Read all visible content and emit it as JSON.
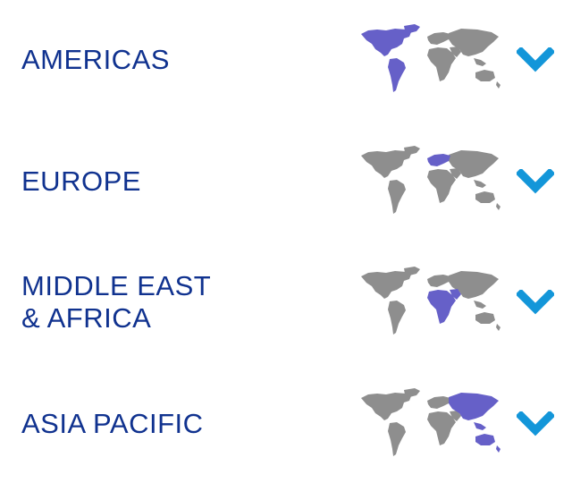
{
  "colors": {
    "title": "#10328f",
    "chevron": "#1396d9",
    "map_land": "#8e8e8e",
    "map_highlight": "#6660c8"
  },
  "regions": [
    {
      "title_lines": [
        "AMERICAS"
      ],
      "highlight": "americas",
      "icon": "chevron-down-icon"
    },
    {
      "title_lines": [
        "EUROPE"
      ],
      "highlight": "europe",
      "icon": "chevron-down-icon"
    },
    {
      "title_lines": [
        "MIDDLE EAST",
        "& AFRICA"
      ],
      "highlight": "africa-middle-east",
      "icon": "chevron-down-icon"
    },
    {
      "title_lines": [
        "ASIA PACIFIC"
      ],
      "highlight": "asia-pacific",
      "icon": "chevron-down-icon"
    }
  ]
}
